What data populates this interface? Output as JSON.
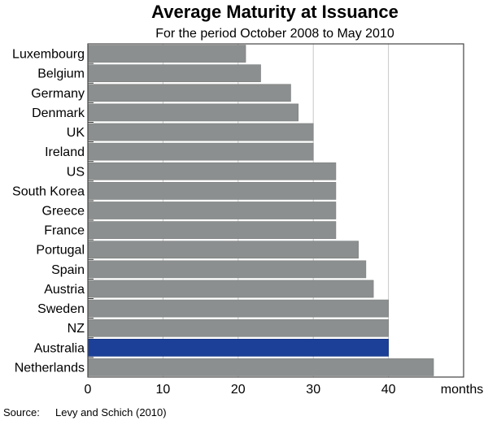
{
  "chart_data": {
    "type": "bar",
    "orientation": "horizontal",
    "title": "Average Maturity at Issuance",
    "subtitle": "For the period October 2008 to May 2010",
    "xlabel": "months",
    "ylabel": "",
    "xlim": [
      0,
      50
    ],
    "xticks": [
      0,
      10,
      20,
      30,
      40
    ],
    "grid": "vertical",
    "categories": [
      "Luxembourg",
      "Belgium",
      "Germany",
      "Denmark",
      "UK",
      "Ireland",
      "US",
      "South Korea",
      "Greece",
      "France",
      "Portugal",
      "Spain",
      "Austria",
      "Sweden",
      "NZ",
      "Australia",
      "Netherlands"
    ],
    "values": [
      21,
      23,
      27,
      28,
      30,
      30,
      33,
      33,
      33,
      33,
      36,
      37,
      38,
      40,
      40,
      40,
      46
    ],
    "highlight": "Australia",
    "colors": {
      "bar": "#8c8f8f",
      "highlight": "#1c4098",
      "grid": "#c8c8c8"
    },
    "source_label": "Source:",
    "source": "Levy and Schich (2010)"
  }
}
